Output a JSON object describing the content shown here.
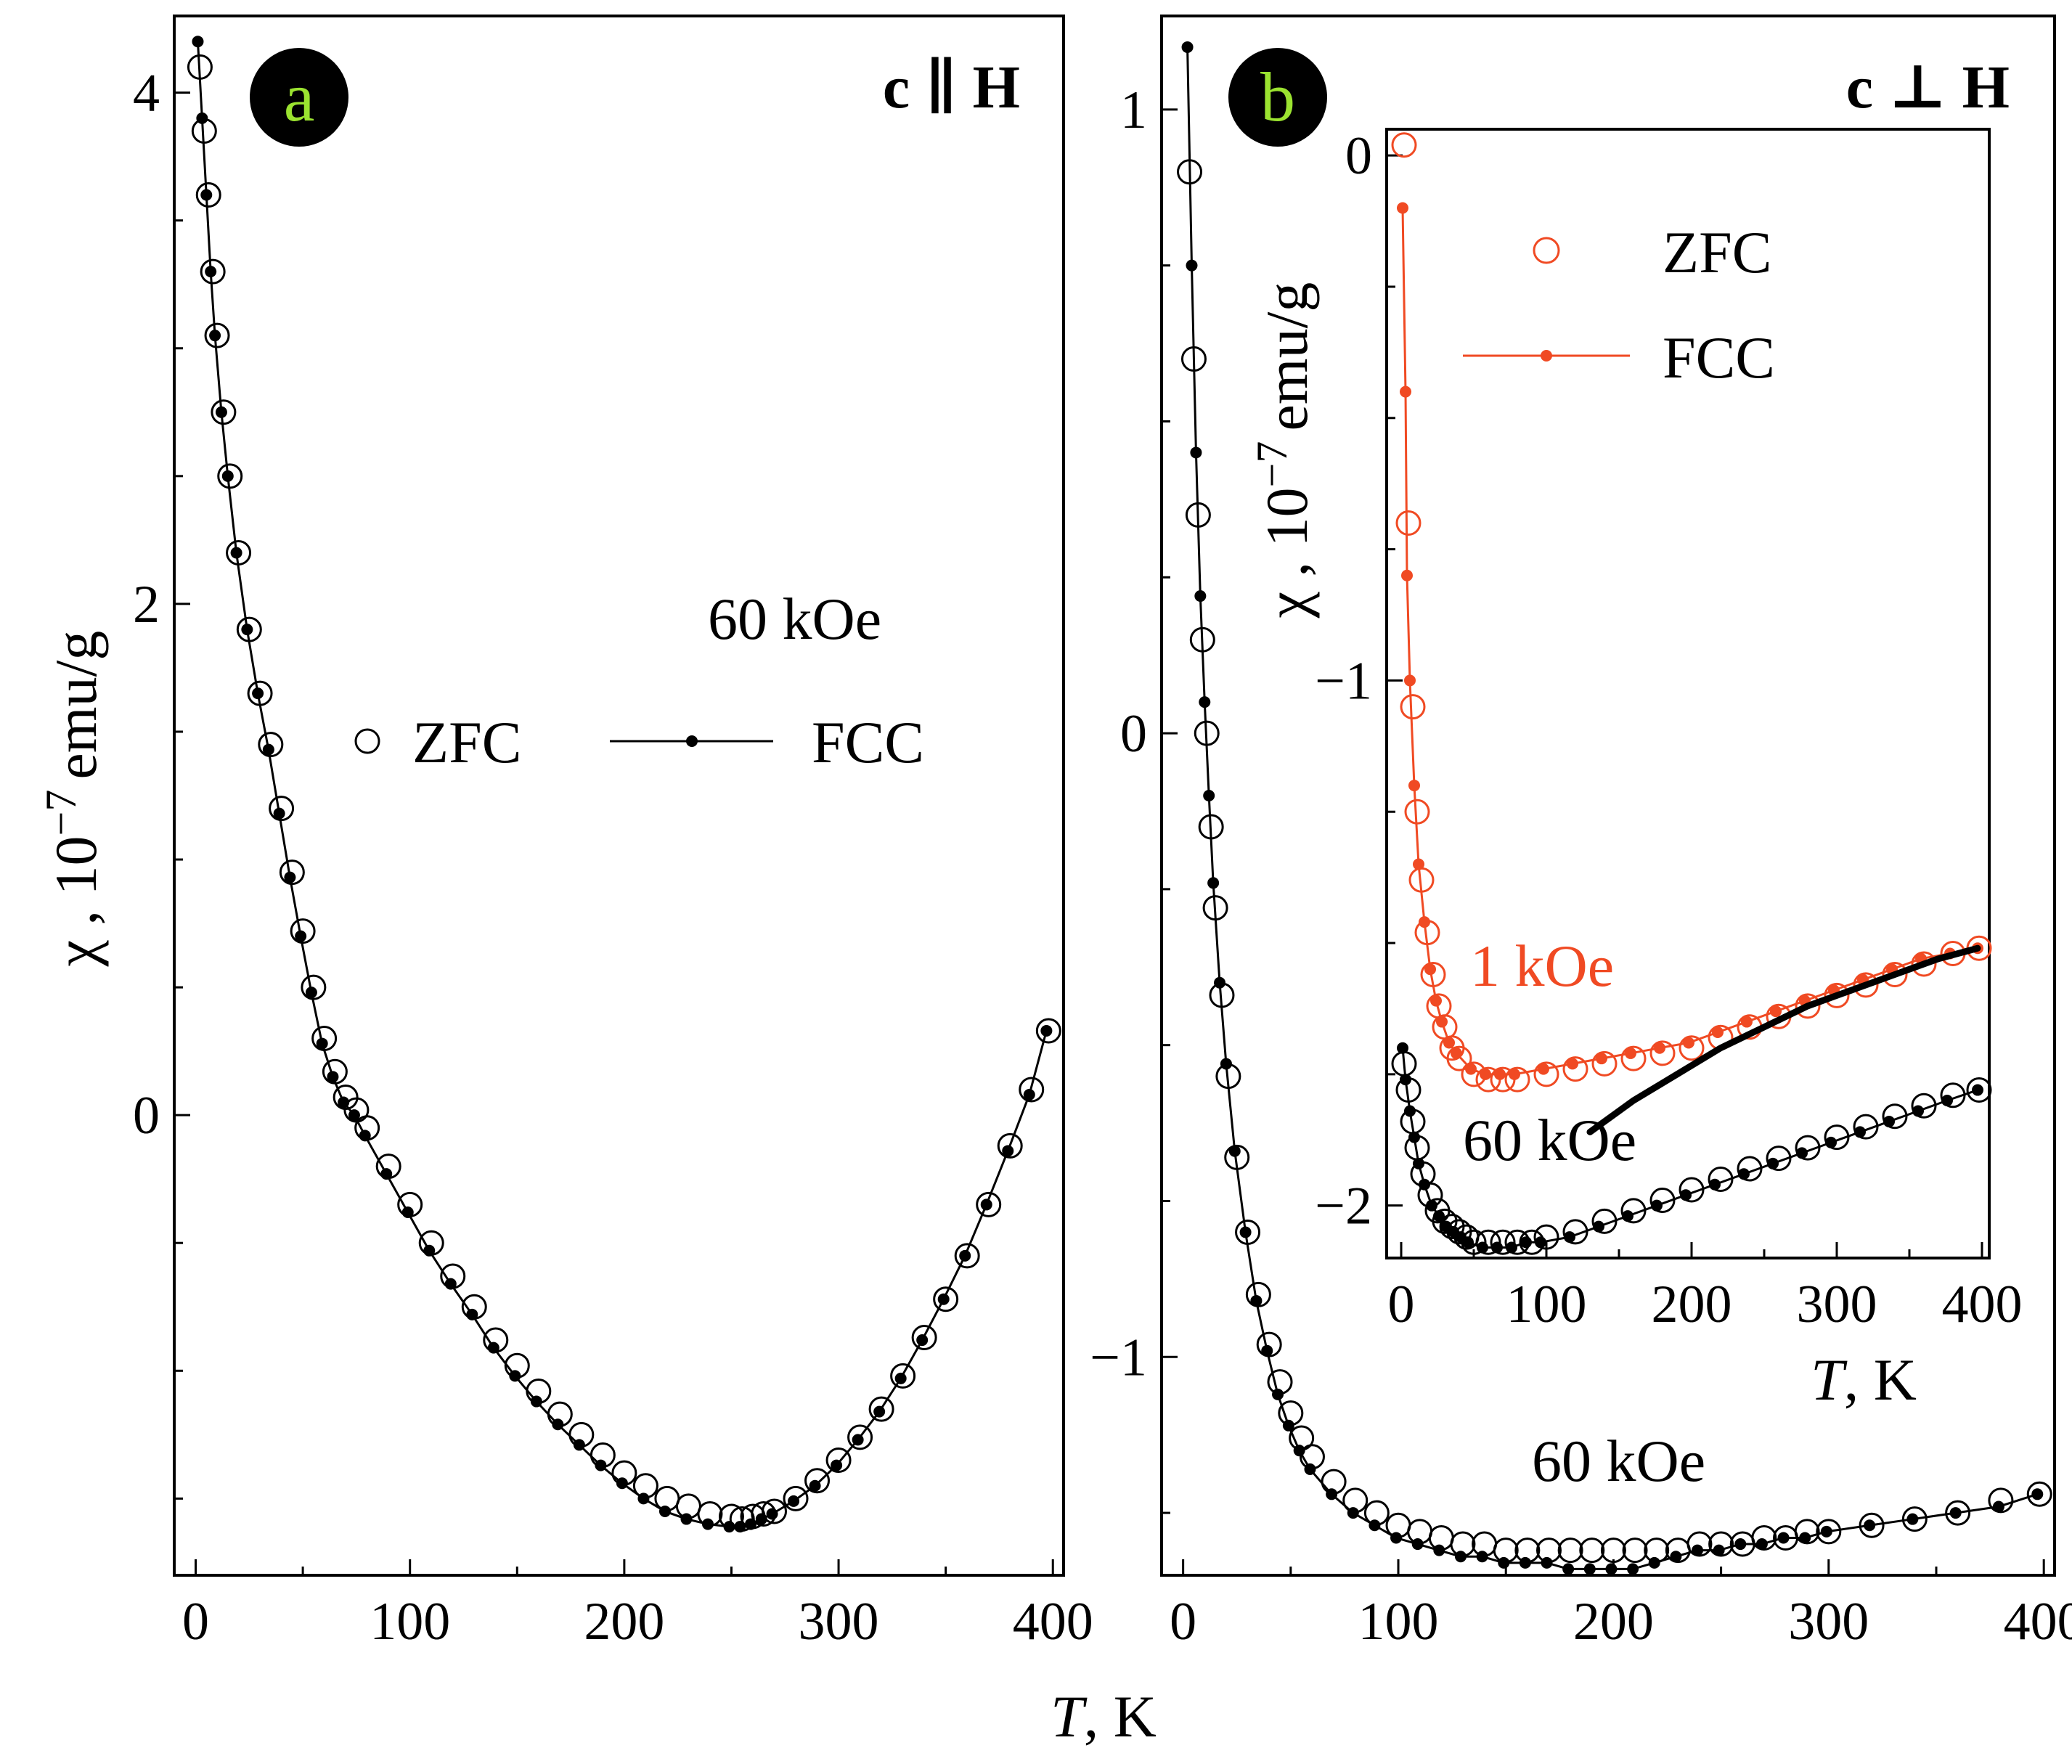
{
  "chart_data": [
    {
      "panel": "a",
      "type": "scatter",
      "title": "c ∥ H",
      "field_label": "60 kOe",
      "xlabel": "T, K",
      "ylabel": "χ , 10",
      "ylabel_exp": "−7",
      "ylabel_unit": "emu/g",
      "xlim": [
        -10,
        405
      ],
      "ylim": [
        -1.8,
        4.3
      ],
      "xticks": [
        0,
        100,
        200,
        300,
        400
      ],
      "yticks": [
        0,
        2,
        4
      ],
      "xtick_labels": [
        "0",
        "100",
        "200",
        "300",
        "400"
      ],
      "ytick_labels": [
        "0",
        "2",
        "4"
      ],
      "legend": [
        "ZFC",
        "FCC"
      ],
      "series": [
        {
          "name": "ZFC",
          "marker": "open-circle",
          "x": [
            2,
            4,
            6,
            8,
            10,
            13,
            16,
            20,
            25,
            30,
            35,
            40,
            45,
            50,
            55,
            60,
            65,
            70,
            75,
            80,
            90,
            100,
            110,
            120,
            130,
            140,
            150,
            160,
            170,
            180,
            190,
            200,
            210,
            220,
            230,
            240,
            250,
            255,
            260,
            265,
            270,
            280,
            290,
            300,
            310,
            320,
            330,
            340,
            350,
            360,
            370,
            380,
            390,
            398
          ],
          "y": [
            4.1,
            3.85,
            3.6,
            3.3,
            3.05,
            2.75,
            2.5,
            2.2,
            1.9,
            1.65,
            1.45,
            1.2,
            0.95,
            0.72,
            0.5,
            0.3,
            0.17,
            0.07,
            0.02,
            -0.05,
            -0.2,
            -0.35,
            -0.5,
            -0.63,
            -0.75,
            -0.88,
            -0.98,
            -1.08,
            -1.17,
            -1.25,
            -1.33,
            -1.4,
            -1.45,
            -1.5,
            -1.53,
            -1.56,
            -1.57,
            -1.58,
            -1.57,
            -1.56,
            -1.55,
            -1.5,
            -1.43,
            -1.35,
            -1.26,
            -1.15,
            -1.02,
            -0.87,
            -0.72,
            -0.55,
            -0.35,
            -0.12,
            0.1,
            0.33
          ]
        },
        {
          "name": "FCC",
          "marker": "filled-dot-line",
          "x": [
            1,
            3,
            5,
            7,
            9,
            12,
            15,
            19,
            24,
            29,
            34,
            39,
            44,
            49,
            54,
            59,
            64,
            69,
            74,
            79,
            89,
            99,
            109,
            119,
            129,
            139,
            149,
            159,
            169,
            179,
            189,
            199,
            209,
            219,
            229,
            239,
            249,
            254,
            259,
            264,
            269,
            279,
            289,
            299,
            309,
            319,
            329,
            339,
            349,
            359,
            369,
            379,
            389,
            397
          ],
          "y": [
            4.2,
            3.9,
            3.6,
            3.3,
            3.05,
            2.75,
            2.5,
            2.2,
            1.9,
            1.65,
            1.43,
            1.18,
            0.93,
            0.7,
            0.48,
            0.28,
            0.15,
            0.05,
            0.0,
            -0.08,
            -0.23,
            -0.38,
            -0.53,
            -0.66,
            -0.78,
            -0.91,
            -1.02,
            -1.12,
            -1.21,
            -1.29,
            -1.37,
            -1.44,
            -1.5,
            -1.55,
            -1.58,
            -1.6,
            -1.61,
            -1.61,
            -1.6,
            -1.58,
            -1.56,
            -1.51,
            -1.45,
            -1.37,
            -1.27,
            -1.16,
            -1.03,
            -0.88,
            -0.72,
            -0.55,
            -0.35,
            -0.14,
            0.08,
            0.33
          ]
        }
      ]
    },
    {
      "panel": "b",
      "type": "scatter",
      "title": "c ⊥ H",
      "field_label": "60 kOe",
      "xlabel": "T, K",
      "xlim": [
        -10,
        405
      ],
      "ylim": [
        -1.35,
        1.15
      ],
      "xticks": [
        0,
        100,
        200,
        300,
        400
      ],
      "yticks": [
        -1,
        0,
        1
      ],
      "xtick_labels": [
        "0",
        "100",
        "200",
        "300",
        "400"
      ],
      "ytick_labels": [
        "−1",
        "0",
        "1"
      ],
      "series": [
        {
          "name": "ZFC",
          "marker": "open-circle",
          "x": [
            3,
            5,
            7,
            9,
            11,
            13,
            15,
            18,
            21,
            25,
            30,
            35,
            40,
            45,
            50,
            55,
            60,
            70,
            80,
            90,
            100,
            110,
            120,
            130,
            140,
            150,
            160,
            170,
            180,
            190,
            200,
            210,
            220,
            230,
            240,
            250,
            260,
            270,
            280,
            290,
            300,
            320,
            340,
            360,
            380,
            398
          ],
          "y": [
            0.9,
            0.6,
            0.35,
            0.15,
            0.0,
            -0.15,
            -0.28,
            -0.42,
            -0.55,
            -0.68,
            -0.8,
            -0.9,
            -0.98,
            -1.04,
            -1.09,
            -1.13,
            -1.16,
            -1.2,
            -1.23,
            -1.25,
            -1.27,
            -1.28,
            -1.29,
            -1.3,
            -1.3,
            -1.31,
            -1.31,
            -1.31,
            -1.31,
            -1.31,
            -1.31,
            -1.31,
            -1.31,
            -1.31,
            -1.3,
            -1.3,
            -1.3,
            -1.29,
            -1.29,
            -1.28,
            -1.28,
            -1.27,
            -1.26,
            -1.25,
            -1.23,
            -1.22
          ]
        },
        {
          "name": "FCC",
          "marker": "filled-dot-line",
          "x": [
            2,
            4,
            6,
            8,
            10,
            12,
            14,
            17,
            20,
            24,
            29,
            34,
            39,
            44,
            49,
            54,
            59,
            69,
            79,
            89,
            99,
            109,
            119,
            129,
            139,
            149,
            159,
            169,
            179,
            189,
            199,
            209,
            219,
            229,
            239,
            249,
            259,
            269,
            279,
            289,
            299,
            319,
            339,
            359,
            379,
            397
          ],
          "y": [
            1.1,
            0.75,
            0.45,
            0.22,
            0.05,
            -0.1,
            -0.24,
            -0.4,
            -0.53,
            -0.67,
            -0.8,
            -0.91,
            -0.99,
            -1.06,
            -1.11,
            -1.15,
            -1.18,
            -1.22,
            -1.25,
            -1.27,
            -1.29,
            -1.3,
            -1.31,
            -1.32,
            -1.32,
            -1.33,
            -1.33,
            -1.33,
            -1.34,
            -1.34,
            -1.34,
            -1.34,
            -1.33,
            -1.32,
            -1.31,
            -1.31,
            -1.3,
            -1.3,
            -1.29,
            -1.29,
            -1.28,
            -1.27,
            -1.26,
            -1.25,
            -1.24,
            -1.22
          ]
        }
      ]
    },
    {
      "panel": "b-inset",
      "type": "scatter",
      "xlabel": "T, K",
      "ylabel": "χ , 10",
      "ylabel_exp": "−7",
      "ylabel_unit": "emu/g",
      "xlim": [
        -10,
        405
      ],
      "ylim": [
        -2.1,
        0.05
      ],
      "xticks": [
        0,
        100,
        200,
        300,
        400
      ],
      "yticks": [
        -2,
        -1,
        0
      ],
      "xtick_labels": [
        "0",
        "100",
        "200",
        "300",
        "400"
      ],
      "ytick_labels": [
        "−2",
        "−1",
        "0"
      ],
      "legend": [
        "ZFC",
        "FCC"
      ],
      "annotations": {
        "low_field": "1 kOe",
        "high_field": "60 kOe"
      },
      "series": [
        {
          "name": "ZFC 1 kOe",
          "color": "#f04a23",
          "marker": "open-circle",
          "x": [
            2,
            5,
            8,
            11,
            14,
            18,
            22,
            26,
            30,
            35,
            40,
            50,
            60,
            70,
            80,
            100,
            120,
            140,
            160,
            180,
            200,
            220,
            240,
            260,
            280,
            300,
            320,
            340,
            360,
            380,
            398
          ],
          "y": [
            0.02,
            -0.7,
            -1.05,
            -1.25,
            -1.38,
            -1.48,
            -1.56,
            -1.62,
            -1.66,
            -1.7,
            -1.72,
            -1.75,
            -1.76,
            -1.76,
            -1.76,
            -1.75,
            -1.74,
            -1.73,
            -1.72,
            -1.71,
            -1.7,
            -1.68,
            -1.66,
            -1.64,
            -1.62,
            -1.6,
            -1.58,
            -1.56,
            -1.54,
            -1.52,
            -1.51
          ]
        },
        {
          "name": "FCC 1 kOe",
          "color": "#f04a23",
          "marker": "filled-dot-line",
          "x": [
            1,
            3,
            4,
            6,
            9,
            12,
            16,
            20,
            24,
            28,
            33,
            38,
            48,
            58,
            68,
            78,
            98,
            118,
            138,
            158,
            178,
            198,
            218,
            238,
            258,
            278,
            298,
            318,
            338,
            358,
            378,
            397
          ],
          "y": [
            -0.1,
            -0.45,
            -0.8,
            -1.0,
            -1.2,
            -1.35,
            -1.46,
            -1.55,
            -1.61,
            -1.65,
            -1.69,
            -1.71,
            -1.74,
            -1.75,
            -1.75,
            -1.75,
            -1.74,
            -1.73,
            -1.72,
            -1.71,
            -1.7,
            -1.69,
            -1.67,
            -1.65,
            -1.63,
            -1.61,
            -1.59,
            -1.57,
            -1.55,
            -1.53,
            -1.52,
            -1.51
          ]
        },
        {
          "name": "ZFC 60 kOe",
          "color": "#000000",
          "marker": "open-circle",
          "x": [
            2,
            5,
            8,
            11,
            15,
            20,
            25,
            30,
            35,
            40,
            45,
            50,
            60,
            70,
            80,
            90,
            100,
            120,
            140,
            160,
            180,
            200,
            220,
            240,
            260,
            280,
            300,
            320,
            340,
            360,
            380,
            398
          ],
          "y": [
            -1.73,
            -1.78,
            -1.84,
            -1.89,
            -1.94,
            -1.98,
            -2.01,
            -2.03,
            -2.04,
            -2.05,
            -2.06,
            -2.07,
            -2.07,
            -2.07,
            -2.07,
            -2.07,
            -2.06,
            -2.05,
            -2.03,
            -2.01,
            -1.99,
            -1.97,
            -1.95,
            -1.93,
            -1.91,
            -1.89,
            -1.87,
            -1.85,
            -1.83,
            -1.81,
            -1.79,
            -1.78
          ]
        },
        {
          "name": "FCC 60 kOe",
          "color": "#000000",
          "marker": "filled-dot-line",
          "x": [
            1,
            3,
            6,
            9,
            12,
            16,
            21,
            26,
            31,
            36,
            41,
            46,
            56,
            66,
            76,
            86,
            96,
            116,
            136,
            156,
            176,
            196,
            216,
            236,
            256,
            276,
            296,
            316,
            336,
            356,
            376,
            397
          ],
          "y": [
            -1.7,
            -1.76,
            -1.82,
            -1.87,
            -1.92,
            -1.96,
            -2.0,
            -2.02,
            -2.04,
            -2.05,
            -2.06,
            -2.07,
            -2.08,
            -2.08,
            -2.08,
            -2.07,
            -2.07,
            -2.06,
            -2.04,
            -2.02,
            -2.0,
            -1.98,
            -1.96,
            -1.94,
            -1.92,
            -1.9,
            -1.88,
            -1.86,
            -1.84,
            -1.82,
            -1.8,
            -1.78
          ]
        },
        {
          "name": "fit 60 kOe",
          "color": "#000000",
          "marker": "thick-line",
          "x": [
            130,
            160,
            190,
            220,
            250,
            280,
            310,
            340,
            370,
            397
          ],
          "y": [
            -1.86,
            -1.8,
            -1.75,
            -1.7,
            -1.66,
            -1.62,
            -1.59,
            -1.56,
            -1.53,
            -1.51
          ]
        }
      ]
    }
  ]
}
